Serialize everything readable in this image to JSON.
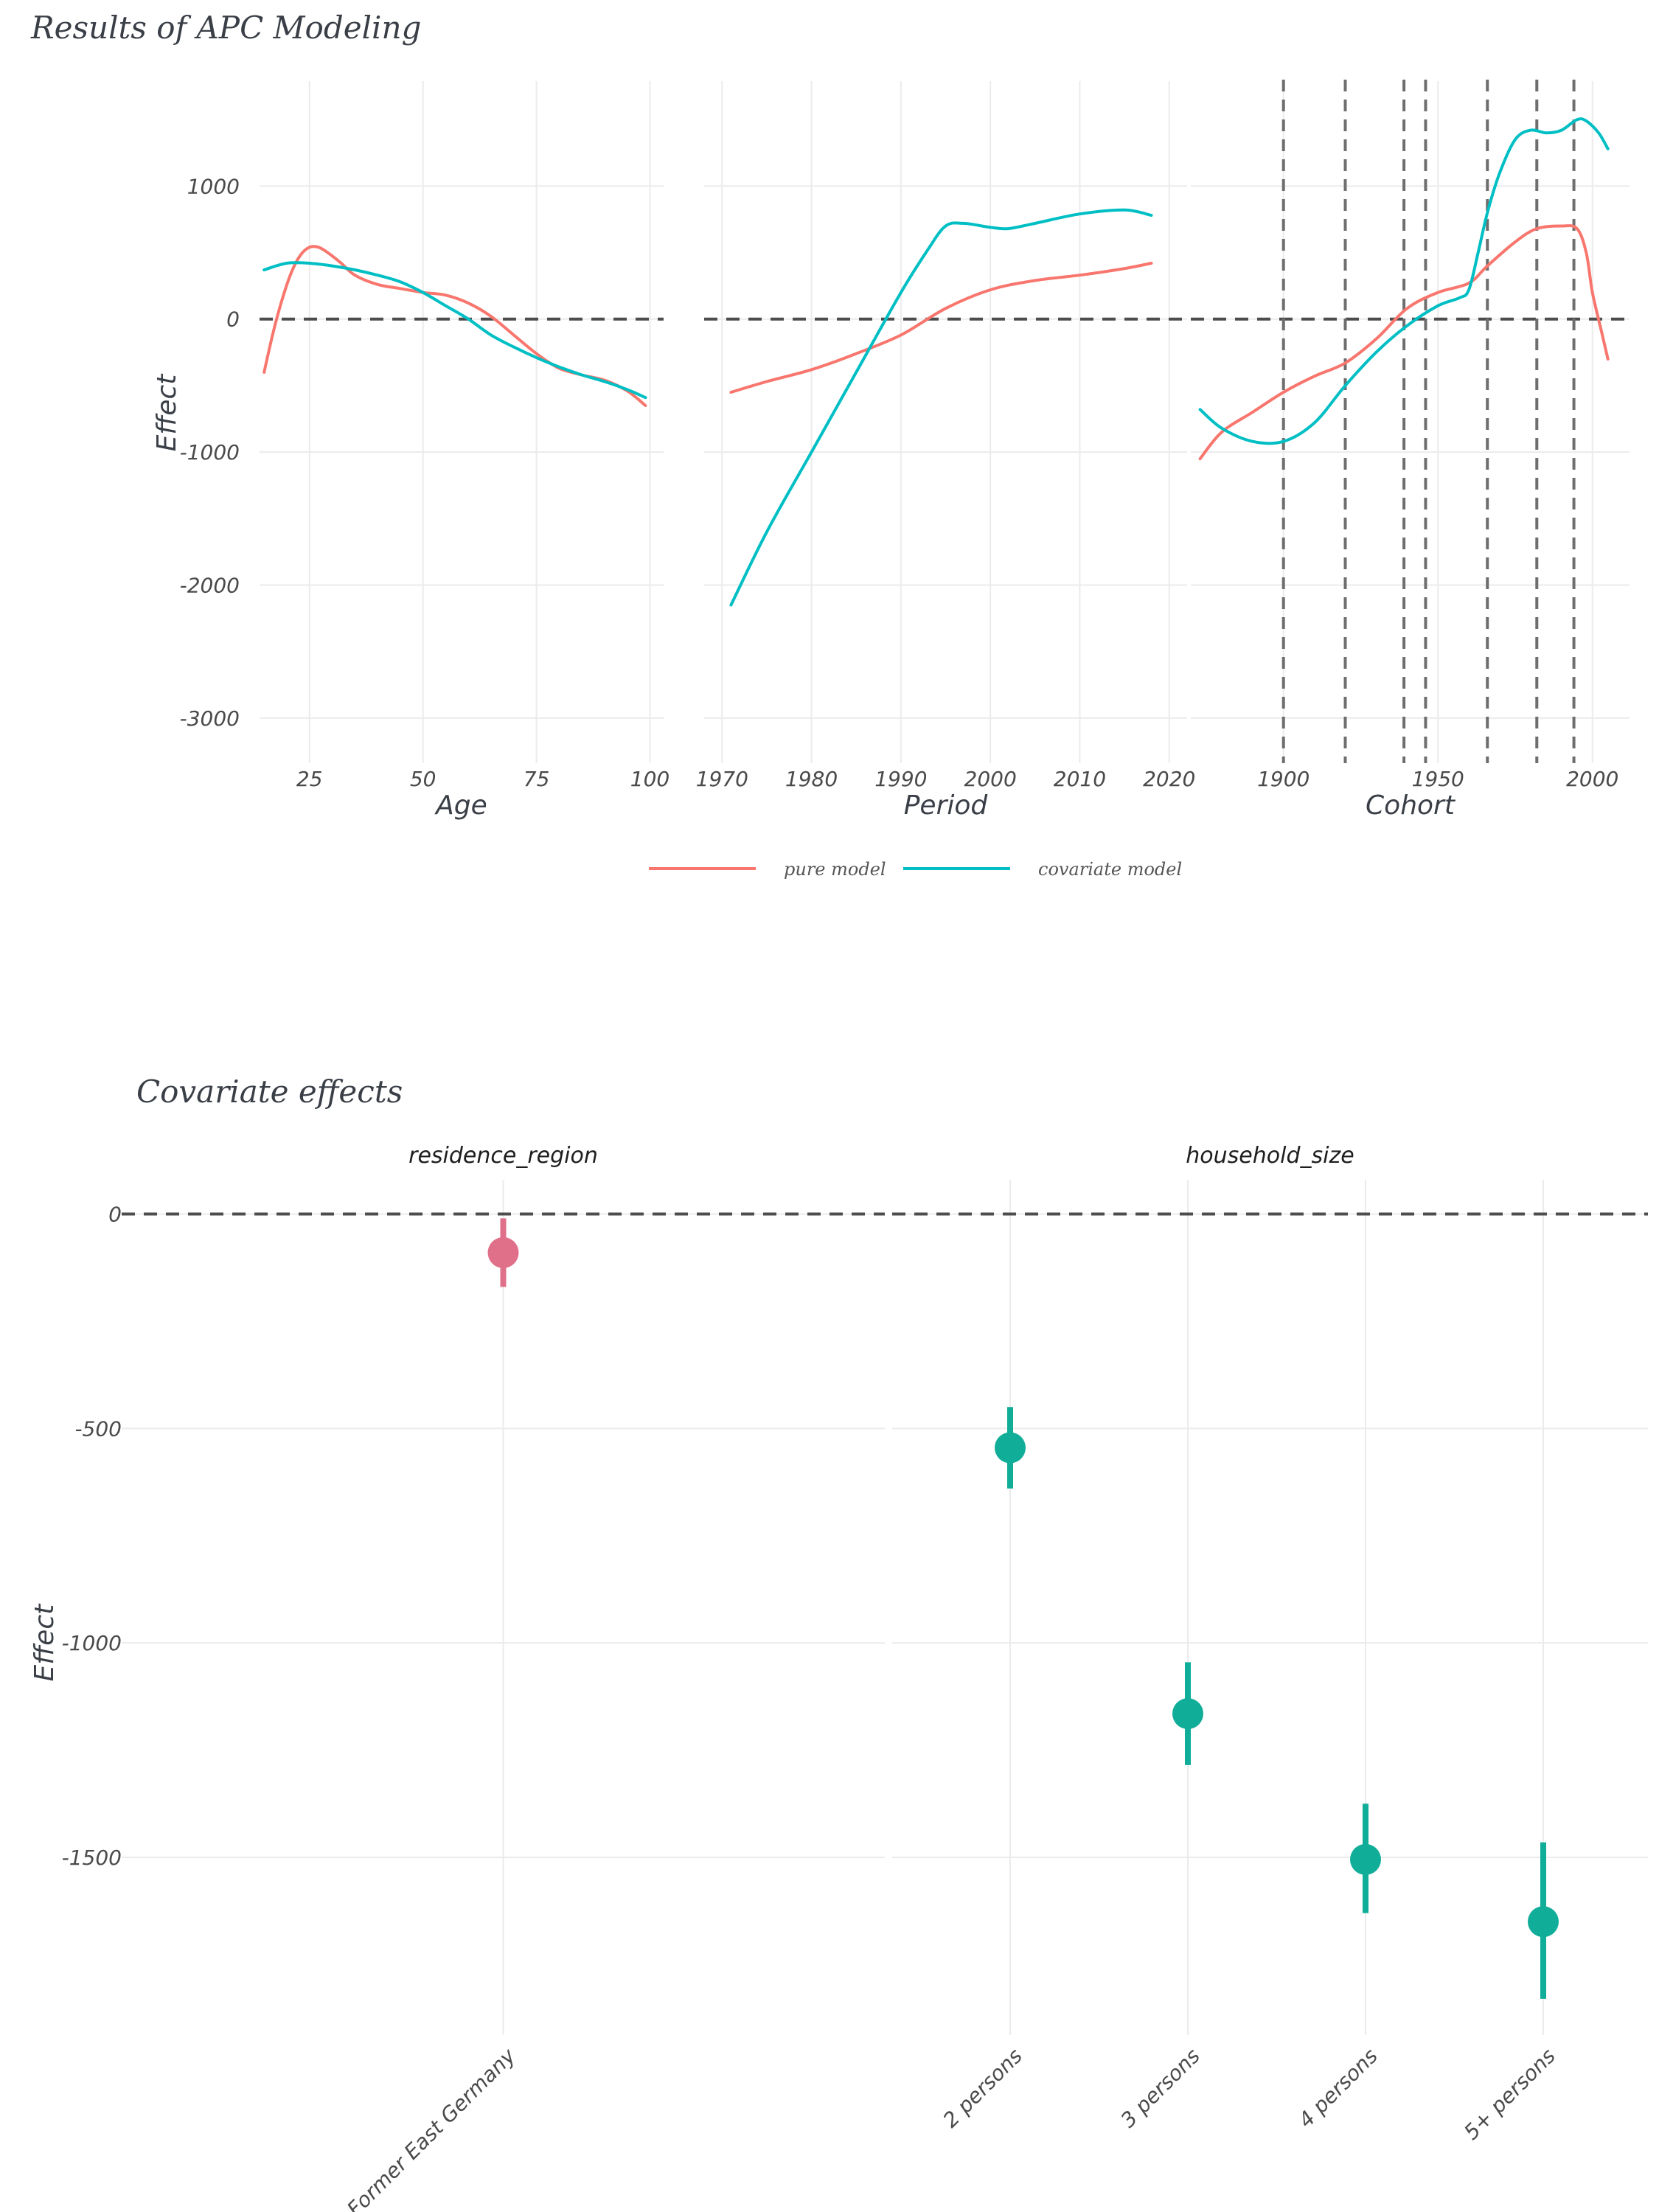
{
  "chart_data": [
    {
      "type": "line",
      "title": "Results of APC Modeling",
      "ylabel": "Effect",
      "ylim": [
        -3200,
        1900
      ],
      "yticks": [
        1000,
        0,
        -1000,
        -2000,
        -3000
      ],
      "grid": true,
      "legend": {
        "position": "bottom",
        "entries": [
          "pure model",
          "covariate model"
        ]
      },
      "colors": {
        "pure model": "#F8766D",
        "covariate model": "#00BFC4",
        "reference": "#6e6e6e"
      },
      "panels": [
        {
          "xlabel": "Age",
          "xlim": [
            14,
            103
          ],
          "xticks": [
            25,
            50,
            75,
            100
          ],
          "series": [
            {
              "name": "pure model",
              "x": [
                15,
                17,
                19,
                21,
                23,
                25,
                27,
                29,
                32,
                35,
                40,
                45,
                50,
                55,
                60,
                65,
                70,
                75,
                80,
                85,
                90,
                95,
                99
              ],
              "y": [
                -400,
                -100,
                150,
                350,
                480,
                540,
                540,
                500,
                420,
                330,
                260,
                230,
                200,
                180,
                120,
                20,
                -120,
                -260,
                -370,
                -420,
                -460,
                -540,
                -650
              ]
            },
            {
              "name": "covariate model",
              "x": [
                15,
                20,
                25,
                30,
                35,
                40,
                45,
                50,
                55,
                60,
                65,
                70,
                75,
                80,
                85,
                90,
                95,
                99
              ],
              "y": [
                370,
                420,
                420,
                400,
                370,
                330,
                280,
                200,
                100,
                0,
                -120,
                -210,
                -290,
                -360,
                -420,
                -470,
                -530,
                -590
              ]
            }
          ]
        },
        {
          "xlabel": "Period",
          "xlim": [
            1968,
            2022
          ],
          "xticks": [
            1970,
            1980,
            1990,
            2000,
            2010,
            2020
          ],
          "series": [
            {
              "name": "pure model",
              "x": [
                1971,
                1975,
                1980,
                1985,
                1990,
                1995,
                2000,
                2005,
                2010,
                2015,
                2018
              ],
              "y": [
                -550,
                -470,
                -380,
                -260,
                -120,
                80,
                220,
                290,
                330,
                380,
                420
              ]
            },
            {
              "name": "covariate model",
              "x": [
                1971,
                1975,
                1980,
                1985,
                1990,
                1993,
                1995,
                1997,
                2000,
                2002,
                2005,
                2010,
                2015,
                2018
              ],
              "y": [
                -2150,
                -1600,
                -1000,
                -400,
                200,
                520,
                700,
                720,
                690,
                680,
                720,
                790,
                820,
                780
              ]
            }
          ]
        },
        {
          "xlabel": "Cohort",
          "xlim": [
            1870,
            2012
          ],
          "xticks": [
            1900,
            1950,
            2000
          ],
          "vlines": [
            1900,
            1920,
            1939,
            1946,
            1966,
            1982,
            1994
          ],
          "series": [
            {
              "name": "pure model",
              "x": [
                1873,
                1880,
                1890,
                1900,
                1910,
                1920,
                1930,
                1940,
                1950,
                1960,
                1966,
                1975,
                1982,
                1990,
                1995,
                1998,
                2000,
                2003,
                2005
              ],
              "y": [
                -1050,
                -850,
                -700,
                -550,
                -430,
                -330,
                -150,
                80,
                200,
                270,
                400,
                580,
                680,
                700,
                680,
                500,
                200,
                -100,
                -300
              ]
            },
            {
              "name": "covariate model",
              "x": [
                1873,
                1880,
                1890,
                1900,
                1910,
                1920,
                1930,
                1940,
                1950,
                1957,
                1960,
                1963,
                1966,
                1970,
                1975,
                1980,
                1985,
                1990,
                1995,
                1998,
                2002,
                2005
              ],
              "y": [
                -680,
                -820,
                -920,
                -920,
                -780,
                -500,
                -250,
                -50,
                100,
                160,
                220,
                500,
                800,
                1100,
                1350,
                1420,
                1400,
                1420,
                1500,
                1490,
                1400,
                1280
              ]
            }
          ]
        }
      ]
    },
    {
      "type": "scatter",
      "title": "Covariate effects",
      "ylabel": "Effect",
      "ylim": [
        -1880,
        80
      ],
      "yticks": [
        0,
        -500,
        -1000,
        -1500
      ],
      "grid": true,
      "panels": [
        {
          "strip": "residence_region",
          "color": "#e0708a",
          "categories": [
            "Former East Germany"
          ],
          "values": [
            -90
          ],
          "ci_low": [
            -170
          ],
          "ci_high": [
            -10
          ]
        },
        {
          "strip": "household_size",
          "color": "#10ad99",
          "categories": [
            "2 persons",
            "3 persons",
            "4 persons",
            "5+ persons"
          ],
          "values": [
            -545,
            -1165,
            -1505,
            -1650
          ],
          "ci_low": [
            -640,
            -1285,
            -1630,
            -1830
          ],
          "ci_high": [
            -450,
            -1045,
            -1375,
            -1465
          ]
        }
      ]
    }
  ]
}
